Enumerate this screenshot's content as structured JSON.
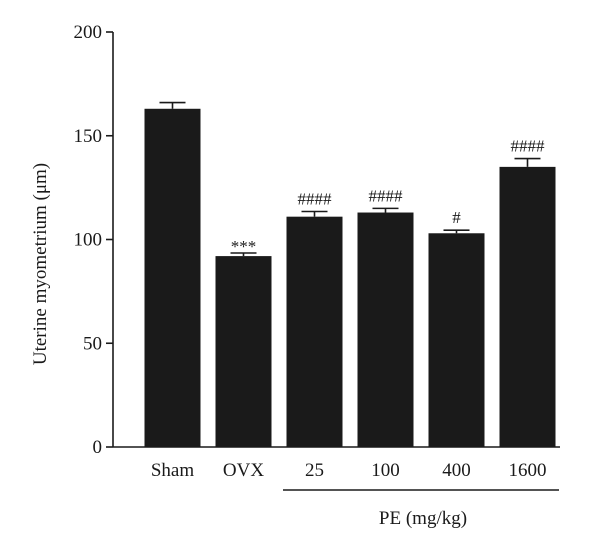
{
  "chart_data": {
    "type": "bar",
    "categories": [
      "Sham",
      "OVX",
      "25",
      "100",
      "400",
      "1600"
    ],
    "values": [
      163,
      92,
      111,
      113,
      103,
      135
    ],
    "errors": [
      3,
      1.5,
      2.5,
      2,
      1.5,
      4
    ],
    "significance": [
      "",
      "***",
      "####",
      "####",
      "#",
      "####"
    ],
    "ylabel": "Uterine myometrium (μm)",
    "ylim": [
      0,
      200
    ],
    "yticks": [
      0,
      50,
      100,
      150,
      200
    ],
    "group": {
      "label": "PE (mg/kg)",
      "from_index": 2,
      "to_index": 5
    },
    "bar_color": "#1a1a1a",
    "grid": false,
    "legend": "none"
  }
}
